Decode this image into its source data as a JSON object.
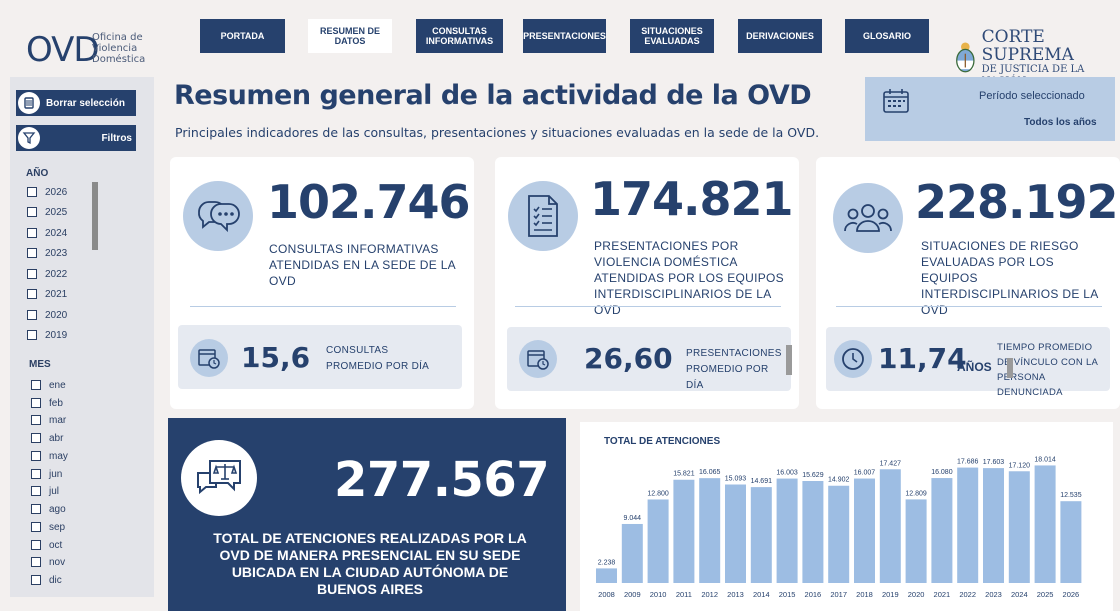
{
  "header": {
    "logo": "OVD",
    "logo_sub": "Oficina de Violencia Doméstica",
    "nav": [
      "PORTADA",
      "RESUMEN DE DATOS",
      "CONSULTAS INFORMATIVAS",
      "PRESENTACIONES",
      "SITUACIONES EVALUADAS",
      "DERIVACIONES",
      "GLOSARIO"
    ],
    "active_nav": "RESUMEN DE DATOS",
    "court_line1": "CORTE SUPREMA",
    "court_line2": "DE JUSTICIA DE LA NACIÓN"
  },
  "sidebar": {
    "clear_label": "Borrar selección",
    "filters_label": "Filtros",
    "year_title": "AÑO",
    "years": [
      "2026",
      "2025",
      "2024",
      "2023",
      "2022",
      "2021",
      "2020",
      "2019"
    ],
    "month_title": "MES",
    "months": [
      "ene",
      "feb",
      "mar",
      "abr",
      "may",
      "jun",
      "jul",
      "ago",
      "sep",
      "oct",
      "nov",
      "dic"
    ]
  },
  "title": "Resumen general de la actividad de la OVD",
  "subtitle": "Principales indicadores de las consultas, presentaciones y situaciones evaluadas en la sede de la OVD.",
  "period": {
    "label": "Período seleccionado",
    "value": "Todos los años"
  },
  "kpis": [
    {
      "value": "102.746",
      "text": "CONSULTAS INFORMATIVAS ATENDIDAS EN LA SEDE DE LA OVD",
      "sub_value": "15,6",
      "sub_text": "CONSULTAS PROMEDIO POR DÍA"
    },
    {
      "value": "174.821",
      "text": "PRESENTACIONES POR VIOLENCIA DOMÉSTICA ATENDIDAS POR LOS EQUIPOS INTERDISCIPLINARIOS DE LA OVD",
      "sub_value": "26,60",
      "sub_text": "PRESENTACIONES PROMEDIO POR DÍA"
    },
    {
      "value": "228.192",
      "text": "SITUACIONES DE RIESGO EVALUADAS POR LOS EQUIPOS INTERDISCIPLINARIOS DE LA OVD",
      "sub_value": "11,74",
      "sub_unit": "AÑOS",
      "sub_text": "TIEMPO PROMEDIO DE VÍNCULO CON LA PERSONA DENUNCIADA"
    }
  ],
  "total": {
    "value": "277.567",
    "text": "TOTAL DE ATENCIONES REALIZADAS POR LA OVD DE MANERA PRESENCIAL EN SU SEDE UBICADA EN LA CIUDAD AUTÓNOMA DE BUENOS AIRES"
  },
  "chart_data": {
    "type": "bar",
    "title": "TOTAL DE ATENCIONES",
    "categories": [
      "2008",
      "2009",
      "2010",
      "2011",
      "2012",
      "2013",
      "2014",
      "2015",
      "2016",
      "2017",
      "2018",
      "2019",
      "2020",
      "2021",
      "2022",
      "2023",
      "2024",
      "2025",
      "2026"
    ],
    "values": [
      2238,
      9044,
      12800,
      15821,
      16065,
      15093,
      14691,
      16003,
      15629,
      14902,
      16007,
      17427,
      12809,
      16080,
      17686,
      17603,
      17120,
      18014,
      12535
    ],
    "labels": [
      "2.238",
      "9.044",
      "12.800",
      "15.821",
      "16.065",
      "15.093",
      "14.691",
      "16.003",
      "15.629",
      "14.902",
      "16.007",
      "17.427",
      "12.809",
      "16.080",
      "17.686",
      "17.603",
      "17.120",
      "18.014",
      "12.535"
    ],
    "color": "#9dbde3",
    "ylim": [
      0,
      19000
    ]
  },
  "colors": {
    "primary": "#26416d",
    "accent": "#b8cce4",
    "bar": "#9dbde3"
  }
}
